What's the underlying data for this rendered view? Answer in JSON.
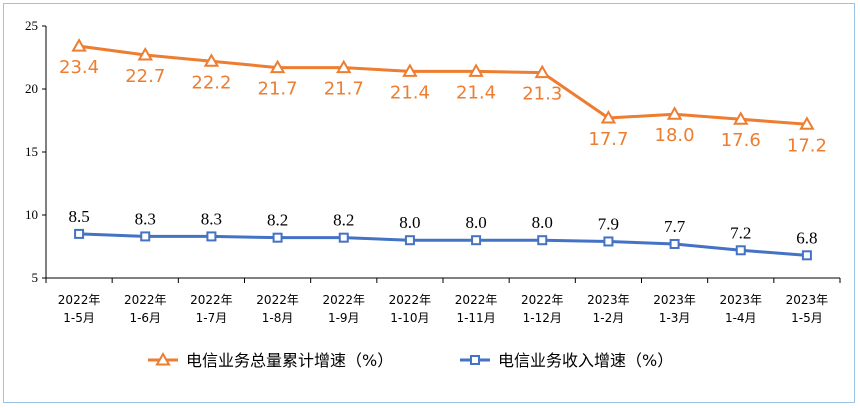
{
  "colors": {
    "orange": "#ed7d31",
    "blue": "#4472c4"
  },
  "chart_data": {
    "type": "line",
    "title": "",
    "xlabel": "",
    "ylabel": "",
    "ylim": [
      5,
      25
    ],
    "yticks": [
      "5",
      "10",
      "15",
      "20",
      "25"
    ],
    "categories": [
      [
        "2022年",
        "1-5月"
      ],
      [
        "2022年",
        "1-6月"
      ],
      [
        "2022年",
        "1-7月"
      ],
      [
        "2022年",
        "1-8月"
      ],
      [
        "2022年",
        "1-9月"
      ],
      [
        "2022年",
        "1-10月"
      ],
      [
        "2022年",
        "1-11月"
      ],
      [
        "2022年",
        "1-12月"
      ],
      [
        "2023年",
        "1-2月"
      ],
      [
        "2023年",
        "1-3月"
      ],
      [
        "2023年",
        "1-4月"
      ],
      [
        "2023年",
        "1-5月"
      ]
    ],
    "series": [
      {
        "name": "电信业务总量累计增速（%）",
        "marker": "triangle",
        "values": [
          23.4,
          22.7,
          22.2,
          21.7,
          21.7,
          21.4,
          21.4,
          21.3,
          17.7,
          18.0,
          17.6,
          17.2
        ],
        "labels": [
          "23.4",
          "22.7",
          "22.2",
          "21.7",
          "21.7",
          "21.4",
          "21.4",
          "21.3",
          "17.7",
          "18.0",
          "17.6",
          "17.2"
        ]
      },
      {
        "name": "电信业务收入增速（%）",
        "marker": "square",
        "values": [
          8.5,
          8.3,
          8.3,
          8.2,
          8.2,
          8.0,
          8.0,
          8.0,
          7.9,
          7.7,
          7.2,
          6.8
        ],
        "labels": [
          "8.5",
          "8.3",
          "8.3",
          "8.2",
          "8.2",
          "8.0",
          "8.0",
          "8.0",
          "7.9",
          "7.7",
          "7.2",
          "6.8"
        ]
      }
    ],
    "legend_position": "bottom",
    "grid": false
  }
}
